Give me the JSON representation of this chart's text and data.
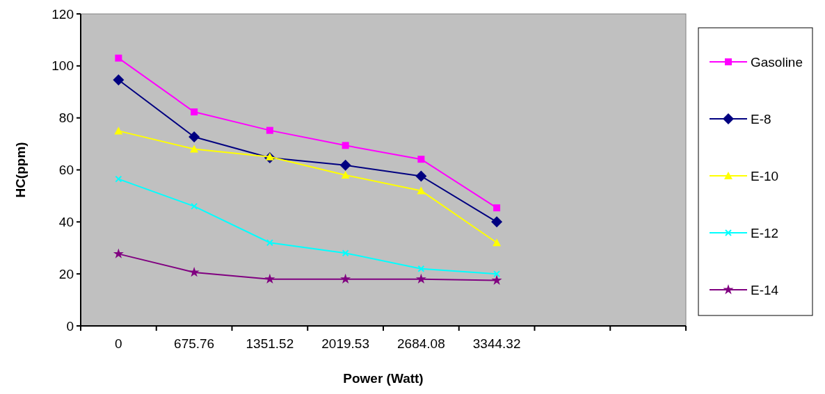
{
  "chart_data": {
    "type": "line",
    "xlabel": "Power (Watt)",
    "ylabel": "HC(ppm)",
    "categories": [
      "0",
      "675.76",
      "1351.52",
      "2019.53",
      "2684.08",
      "3344.32",
      null,
      null
    ],
    "ylim": [
      0,
      120
    ],
    "yticks": [
      0,
      20,
      40,
      60,
      80,
      100,
      120
    ],
    "grid": false,
    "legend": "right",
    "series": [
      {
        "name": "Gasoline",
        "color": "#ff00ff",
        "marker": "square",
        "values": [
          103,
          82.3,
          75.2,
          69.4,
          64.1,
          45.4,
          null,
          null
        ]
      },
      {
        "name": "E-8",
        "color": "#000080",
        "marker": "diamond",
        "values": [
          94.6,
          72.7,
          64.7,
          61.8,
          57.6,
          40,
          null,
          null
        ]
      },
      {
        "name": "E-10",
        "color": "#ffff00",
        "marker": "triangle",
        "values": [
          75,
          68,
          65,
          58,
          52,
          32,
          null,
          null
        ]
      },
      {
        "name": "E-12",
        "color": "#00ffff",
        "marker": "cross",
        "values": [
          56.5,
          46,
          32,
          28,
          22,
          20,
          null,
          null
        ]
      },
      {
        "name": "E-14",
        "color": "#800080",
        "marker": "star",
        "values": [
          27.7,
          20.6,
          18,
          18,
          18,
          17.5,
          null,
          null
        ]
      }
    ]
  }
}
